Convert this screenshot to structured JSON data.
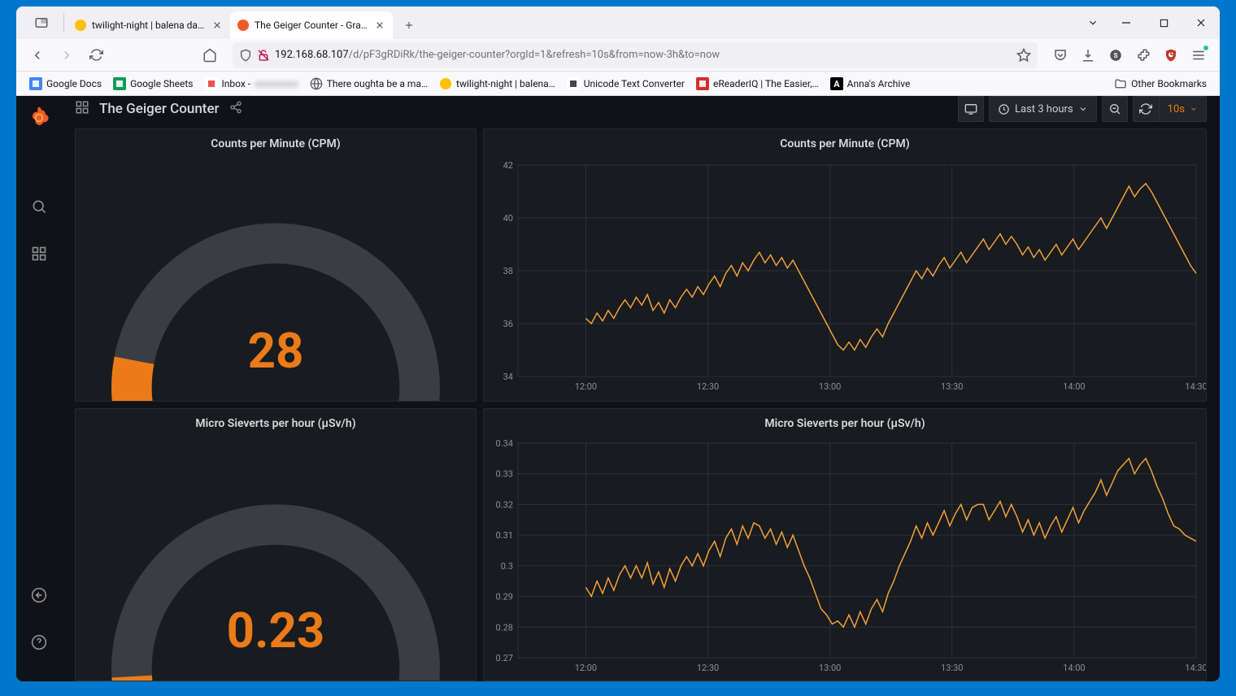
{
  "browser": {
    "tabs": [
      {
        "label": "twilight-night | balena dashbo",
        "active": false,
        "favicon_color": "#ffc107"
      },
      {
        "label": "The Geiger Counter - Grafana",
        "active": true,
        "favicon_color": "#f05a28"
      }
    ],
    "url_host": "192.168.68.107",
    "url_path": "/d/pF3gRDiRk/the-geiger-counter?orgId=1&refresh=10s&from=now-3h&to=now",
    "bookmarks": [
      {
        "label": "Google Docs",
        "icon_bg": "#4285f4",
        "icon_fg": "#ffffff"
      },
      {
        "label": "Google Sheets",
        "icon_bg": "#0f9d58",
        "icon_fg": "#ffffff"
      },
      {
        "label": "Inbox - ",
        "icon_bg": "#ffffff",
        "icon_fg": "#ea4335",
        "blurred_suffix": true
      },
      {
        "label": "There oughta be a ma…",
        "icon_bg": "none",
        "icon_fg": "#5b5b66",
        "globe": true
      },
      {
        "label": "twilight-night | balena…",
        "icon_bg": "#ffc107",
        "icon_fg": "#ffffff",
        "round": true
      },
      {
        "label": "Unicode Text Converter",
        "icon_bg": "#ffffff",
        "icon_fg": "#333333"
      },
      {
        "label": "eReaderIQ | The Easier,…",
        "icon_bg": "#d32f2f",
        "icon_fg": "#ffffff"
      },
      {
        "label": "Anna's Archive",
        "icon_bg": "#000000",
        "icon_fg": "#ffffff",
        "letter": "A"
      }
    ],
    "other_bookmarks_label": "Other Bookmarks"
  },
  "grafana": {
    "dashboard_title": "The Geiger Counter",
    "time_range_label": "Last 3 hours",
    "refresh_label": "10s",
    "accent_color": "#eb7b18",
    "panel_bg": "#181b1f",
    "grid_color": "#2c3235",
    "text_color": "#8a8f98",
    "line_color": "#f2a13c",
    "gauge_track_color": "#3a3d42",
    "panels": {
      "cpm_gauge": {
        "title": "Counts per Minute (CPM)",
        "value": "28",
        "min": 0,
        "max": 200,
        "current": 28
      },
      "usv_gauge": {
        "title": "Micro Sieverts per hour (µSv/h)",
        "value": "0.23",
        "min": 0,
        "max": 3,
        "current": 0.23
      },
      "cpm_chart": {
        "title": "Counts per Minute (CPM)",
        "ylim": [
          34,
          42
        ],
        "yticks": [
          34,
          36,
          38,
          40,
          42
        ],
        "xticks": [
          "12:00",
          "12:30",
          "13:00",
          "13:30",
          "14:00",
          "14:30"
        ],
        "data": [
          36.2,
          36.0,
          36.4,
          36.1,
          36.5,
          36.2,
          36.6,
          36.9,
          36.6,
          37.0,
          36.7,
          37.1,
          36.5,
          36.8,
          36.4,
          36.9,
          36.6,
          37.0,
          37.3,
          37.0,
          37.4,
          37.1,
          37.5,
          37.8,
          37.4,
          37.9,
          38.2,
          37.8,
          38.3,
          38.0,
          38.4,
          38.7,
          38.3,
          38.6,
          38.2,
          38.5,
          38.1,
          38.4,
          38.0,
          37.6,
          37.2,
          36.8,
          36.4,
          36.0,
          35.6,
          35.2,
          35.0,
          35.3,
          35.0,
          35.4,
          35.1,
          35.5,
          35.8,
          35.5,
          36.0,
          36.4,
          36.8,
          37.2,
          37.6,
          38.0,
          37.7,
          38.1,
          37.8,
          38.2,
          38.5,
          38.1,
          38.4,
          38.7,
          38.3,
          38.6,
          38.9,
          39.2,
          38.8,
          39.1,
          39.4,
          39.0,
          39.3,
          39.0,
          38.6,
          38.9,
          38.5,
          38.8,
          38.4,
          38.7,
          39.0,
          38.6,
          38.9,
          39.2,
          38.8,
          39.1,
          39.4,
          39.7,
          40.0,
          39.6,
          40.0,
          40.4,
          40.8,
          41.2,
          40.8,
          41.1,
          41.3,
          41.0,
          40.6,
          40.2,
          39.8,
          39.4,
          39.0,
          38.6,
          38.2,
          37.9
        ]
      },
      "usv_chart": {
        "title": "Micro Sieverts per hour (µSv/h)",
        "ylim": [
          0.27,
          0.34
        ],
        "yticks": [
          0.27,
          0.28,
          0.29,
          0.3,
          0.31,
          0.32,
          0.33,
          0.34
        ],
        "xticks": [
          "12:00",
          "12:30",
          "13:00",
          "13:30",
          "14:00",
          "14:30"
        ],
        "data": [
          0.293,
          0.29,
          0.295,
          0.291,
          0.296,
          0.292,
          0.297,
          0.3,
          0.296,
          0.3,
          0.296,
          0.301,
          0.294,
          0.298,
          0.293,
          0.299,
          0.295,
          0.3,
          0.303,
          0.3,
          0.304,
          0.3,
          0.305,
          0.308,
          0.303,
          0.309,
          0.312,
          0.307,
          0.313,
          0.309,
          0.314,
          0.313,
          0.309,
          0.312,
          0.307,
          0.311,
          0.306,
          0.31,
          0.305,
          0.3,
          0.296,
          0.291,
          0.286,
          0.284,
          0.281,
          0.282,
          0.28,
          0.284,
          0.28,
          0.285,
          0.281,
          0.286,
          0.289,
          0.285,
          0.291,
          0.295,
          0.3,
          0.304,
          0.308,
          0.313,
          0.309,
          0.314,
          0.31,
          0.314,
          0.318,
          0.313,
          0.317,
          0.32,
          0.315,
          0.319,
          0.32,
          0.32,
          0.315,
          0.318,
          0.321,
          0.316,
          0.32,
          0.316,
          0.311,
          0.315,
          0.31,
          0.314,
          0.309,
          0.313,
          0.316,
          0.311,
          0.315,
          0.319,
          0.314,
          0.318,
          0.321,
          0.324,
          0.328,
          0.323,
          0.327,
          0.331,
          0.333,
          0.335,
          0.33,
          0.333,
          0.335,
          0.331,
          0.326,
          0.322,
          0.317,
          0.313,
          0.312,
          0.31,
          0.309,
          0.308
        ]
      }
    }
  }
}
